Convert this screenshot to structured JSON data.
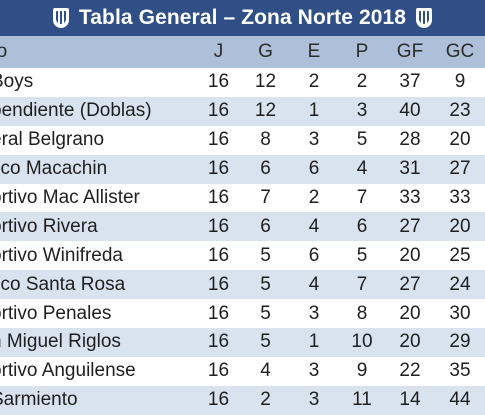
{
  "banner": {
    "title": "Tabla General – Zona Norte 2018",
    "left_icon": "club-crest-icon",
    "right_icon": "club-crest-icon"
  },
  "colors": {
    "banner_bg": "#2f4f86",
    "header_bg": "#aebfd9",
    "row_alt_bg": "#d9e2ef"
  },
  "table": {
    "headers": [
      "po",
      "J",
      "G",
      "E",
      "P",
      "GF",
      "GC"
    ],
    "rows": [
      [
        "Boys",
        "16",
        "12",
        "2",
        "2",
        "37",
        "9"
      ],
      [
        "pendiente (Doblas)",
        "16",
        "12",
        "1",
        "3",
        "40",
        "23"
      ],
      [
        "eral Belgrano",
        "16",
        "8",
        "3",
        "5",
        "28",
        "20"
      ],
      [
        "tico Macachin",
        "16",
        "6",
        "6",
        "4",
        "31",
        "27"
      ],
      [
        "ortivo Mac Allister",
        "16",
        "7",
        "2",
        "7",
        "33",
        "33"
      ],
      [
        "ortivo Rivera",
        "16",
        "6",
        "4",
        "6",
        "27",
        "20"
      ],
      [
        "ortivo Winifreda",
        "16",
        "5",
        "6",
        "5",
        "20",
        "25"
      ],
      [
        "tico Santa Rosa",
        "16",
        "5",
        "4",
        "7",
        "27",
        "24"
      ],
      [
        "ortivo Penales",
        "16",
        "5",
        "3",
        "8",
        "20",
        "30"
      ],
      [
        "n Miguel Riglos",
        "16",
        "5",
        "1",
        "10",
        "20",
        "29"
      ],
      [
        "ortivo Anguilense",
        "16",
        "4",
        "3",
        "9",
        "22",
        "35"
      ],
      [
        "Sarmiento",
        "16",
        "2",
        "3",
        "11",
        "14",
        "44"
      ]
    ]
  }
}
